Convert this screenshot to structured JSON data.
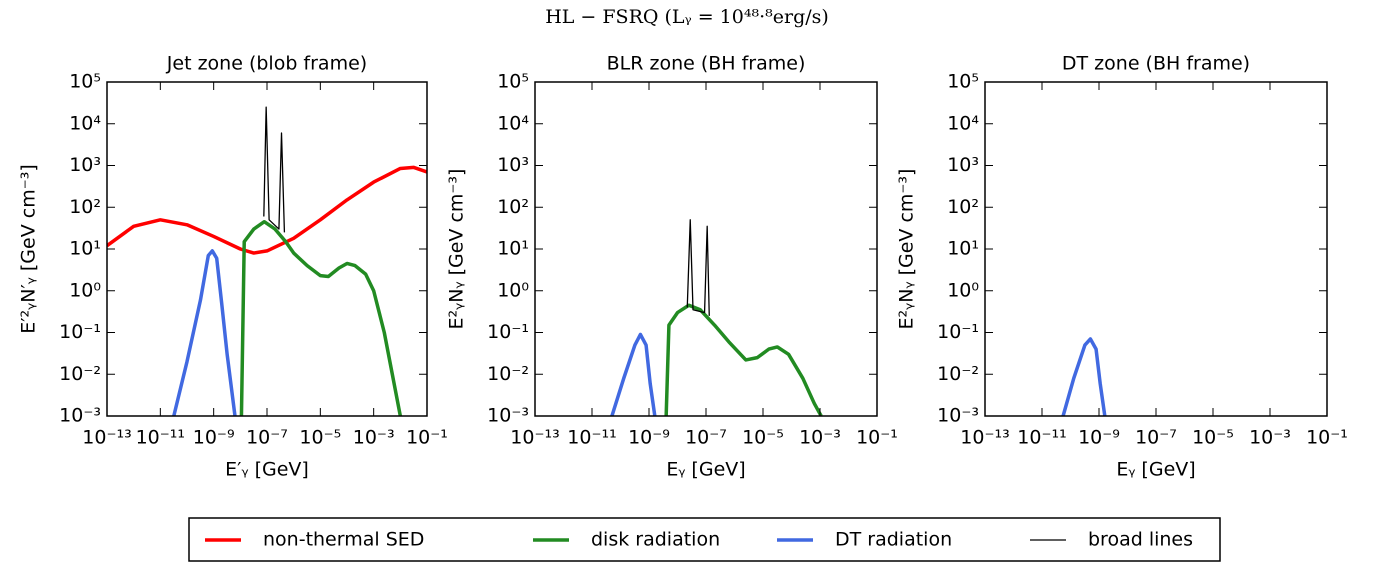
{
  "title": "HL − FSRQ (Lᵧ = 10⁴⁸·⁸erg/s)",
  "chart_data": [
    {
      "type": "line",
      "title": "Jet zone (blob frame)",
      "xlabel": "E′ᵧ [GeV]",
      "ylabel": "E′²ᵧN′ᵧ [GeV cm⁻³]",
      "log_x": true,
      "log_y": true,
      "xlim": [
        1e-13,
        0.1
      ],
      "ylim": [
        0.001,
        100000
      ],
      "xticks": [
        {
          "value": 1e-13,
          "label": "10⁻¹³"
        },
        {
          "value": 1e-11,
          "label": "10⁻¹¹"
        },
        {
          "value": 1e-09,
          "label": "10⁻⁹"
        },
        {
          "value": 1e-07,
          "label": "10⁻⁷"
        },
        {
          "value": 1e-05,
          "label": "10⁻⁵"
        },
        {
          "value": 0.001,
          "label": "10⁻³"
        },
        {
          "value": 0.1,
          "label": "10⁻¹"
        }
      ],
      "yticks": [
        {
          "value": 0.001,
          "label": "10⁻³"
        },
        {
          "value": 0.01,
          "label": "10⁻²"
        },
        {
          "value": 0.1,
          "label": "10⁻¹"
        },
        {
          "value": 1,
          "label": "10⁰"
        },
        {
          "value": 10,
          "label": "10¹"
        },
        {
          "value": 100,
          "label": "10²"
        },
        {
          "value": 1000,
          "label": "10³"
        },
        {
          "value": 10000,
          "label": "10⁴"
        },
        {
          "value": 100000,
          "label": "10⁵"
        }
      ],
      "series": [
        {
          "name": "non-thermal SED",
          "color": "#ff0000",
          "linewidth": 3.5,
          "x": [
            1e-13,
            1e-12,
            1e-11,
            1e-10,
            1e-09,
            1e-08,
            3.2e-08,
            1e-07,
            1e-06,
            1e-05,
            0.0001,
            0.001,
            0.01,
            0.032,
            0.1
          ],
          "values": [
            12,
            35,
            50,
            38,
            20,
            10,
            8,
            9,
            18,
            50,
            150,
            400,
            850,
            900,
            700
          ]
        },
        {
          "name": "disk radiation",
          "color": "#228b22",
          "linewidth": 3.5,
          "x": [
            1.1e-08,
            1.4e-08,
            3.2e-08,
            7.9e-08,
            2e-07,
            5e-07,
            1e-06,
            3.2e-06,
            1e-05,
            2e-05,
            5e-05,
            0.0001,
            0.0002,
            0.0005,
            0.001,
            0.0025,
            0.005,
            0.01
          ],
          "values": [
            0.001,
            15,
            30,
            45,
            30,
            15,
            8,
            4,
            2.3,
            2.2,
            3.5,
            4.5,
            4,
            2.5,
            1,
            0.1,
            0.01,
            0.001
          ]
        },
        {
          "name": "DT radiation",
          "color": "#4169e1",
          "linewidth": 3.5,
          "x": [
            3.2e-11,
            1e-10,
            3.2e-10,
            6.3e-10,
            8.9e-10,
            1.3e-09,
            2e-09,
            3.2e-09,
            6.3e-09
          ],
          "values": [
            0.001,
            0.02,
            0.6,
            7,
            9,
            6,
            0.5,
            0.03,
            0.001
          ]
        },
        {
          "name": "broad lines",
          "color": "#000000",
          "linewidth": 1.3,
          "x": [
            7.6e-08,
            9.3e-08,
            1.2e-07,
            2.8e-07,
            3.5e-07,
            4.5e-07
          ],
          "values": [
            60,
            25000,
            50,
            30,
            6000,
            25
          ]
        }
      ]
    },
    {
      "type": "line",
      "title": "BLR zone (BH frame)",
      "xlabel": "Eᵧ [GeV]",
      "ylabel": "E²ᵧNᵧ [GeV cm⁻³]",
      "log_x": true,
      "log_y": true,
      "xlim": [
        1e-13,
        0.1
      ],
      "ylim": [
        0.001,
        100000
      ],
      "xticks": [
        {
          "value": 1e-13,
          "label": "10⁻¹³"
        },
        {
          "value": 1e-11,
          "label": "10⁻¹¹"
        },
        {
          "value": 1e-09,
          "label": "10⁻⁹"
        },
        {
          "value": 1e-07,
          "label": "10⁻⁷"
        },
        {
          "value": 1e-05,
          "label": "10⁻⁵"
        },
        {
          "value": 0.001,
          "label": "10⁻³"
        },
        {
          "value": 0.1,
          "label": "10⁻¹"
        }
      ],
      "yticks": [
        {
          "value": 0.001,
          "label": "10⁻³"
        },
        {
          "value": 0.01,
          "label": "10⁻²"
        },
        {
          "value": 0.1,
          "label": "10⁻¹"
        },
        {
          "value": 1,
          "label": "10⁰"
        },
        {
          "value": 10,
          "label": "10¹"
        },
        {
          "value": 100,
          "label": "10²"
        },
        {
          "value": 1000,
          "label": "10³"
        },
        {
          "value": 10000,
          "label": "10⁴"
        },
        {
          "value": 100000,
          "label": "10⁵"
        }
      ],
      "series": [
        {
          "name": "disk radiation",
          "color": "#228b22",
          "linewidth": 3.5,
          "x": [
            4e-09,
            5e-09,
            1e-08,
            2.5e-08,
            6.3e-08,
            2e-07,
            6.3e-07,
            2.5e-06,
            6.3e-06,
            1.6e-05,
            3.2e-05,
            7.9e-05,
            0.00025,
            0.00063,
            0.0011
          ],
          "values": [
            0.001,
            0.15,
            0.3,
            0.45,
            0.35,
            0.15,
            0.06,
            0.022,
            0.025,
            0.04,
            0.045,
            0.03,
            0.008,
            0.002,
            0.001
          ]
        },
        {
          "name": "DT radiation",
          "color": "#4169e1",
          "linewidth": 3.5,
          "x": [
            5e-11,
            1.3e-10,
            3.2e-10,
            5e-10,
            7.9e-10,
            1.1e-09,
            1.6e-09
          ],
          "values": [
            0.001,
            0.008,
            0.05,
            0.09,
            0.05,
            0.006,
            0.001
          ]
        },
        {
          "name": "broad lines",
          "color": "#000000",
          "linewidth": 1.3,
          "x": [
            2.2e-08,
            2.8e-08,
            3.5e-08,
            8.9e-08,
            1.1e-07,
            1.3e-07
          ],
          "values": [
            0.4,
            50,
            0.35,
            0.3,
            35,
            0.25
          ]
        }
      ]
    },
    {
      "type": "line",
      "title": "DT zone (BH frame)",
      "xlabel": "Eᵧ [GeV]",
      "ylabel": "E²ᵧNᵧ [GeV cm⁻³]",
      "log_x": true,
      "log_y": true,
      "xlim": [
        1e-13,
        0.1
      ],
      "ylim": [
        0.001,
        100000
      ],
      "xticks": [
        {
          "value": 1e-13,
          "label": "10⁻¹³"
        },
        {
          "value": 1e-11,
          "label": "10⁻¹¹"
        },
        {
          "value": 1e-09,
          "label": "10⁻⁹"
        },
        {
          "value": 1e-07,
          "label": "10⁻⁷"
        },
        {
          "value": 1e-05,
          "label": "10⁻⁵"
        },
        {
          "value": 0.001,
          "label": "10⁻³"
        },
        {
          "value": 0.1,
          "label": "10⁻¹"
        }
      ],
      "yticks": [
        {
          "value": 0.001,
          "label": "10⁻³"
        },
        {
          "value": 0.01,
          "label": "10⁻²"
        },
        {
          "value": 0.1,
          "label": "10⁻¹"
        },
        {
          "value": 1,
          "label": "10⁰"
        },
        {
          "value": 10,
          "label": "10¹"
        },
        {
          "value": 100,
          "label": "10²"
        },
        {
          "value": 1000,
          "label": "10³"
        },
        {
          "value": 10000,
          "label": "10⁴"
        },
        {
          "value": 100000,
          "label": "10⁵"
        }
      ],
      "series": [
        {
          "name": "DT radiation",
          "color": "#4169e1",
          "linewidth": 3.5,
          "x": [
            5.5e-11,
            1.3e-10,
            3.2e-10,
            5e-10,
            7.9e-10,
            1.1e-09,
            1.6e-09
          ],
          "values": [
            0.001,
            0.008,
            0.05,
            0.07,
            0.04,
            0.006,
            0.001
          ]
        }
      ]
    }
  ]
}
